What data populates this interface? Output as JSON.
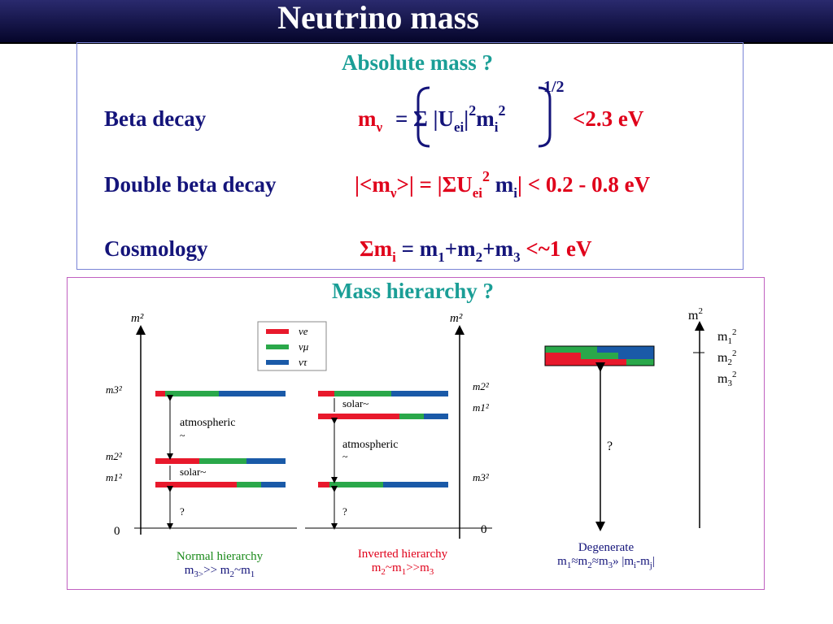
{
  "header": {
    "title": "Neutrino mass"
  },
  "absolute": {
    "heading": "Absolute mass ?",
    "beta": {
      "label": "Beta decay",
      "formula_m": "m",
      "formula_sub": "ν",
      "eq": "= Σ |U",
      "ei": "ei",
      "bar": "|",
      "two1": "2",
      "mi": "m",
      "i": "i",
      "two2": "2",
      "half": "1/2",
      "bound": "<2.3 eV"
    },
    "double": {
      "label": "Double beta decay",
      "pre": "|<m",
      "nu": "ν",
      "post": ">| = |ΣU",
      "ei": "ei",
      "two": "2",
      "mi": " m",
      "i": "i",
      "bound": "| < 0.2 - 0.8 eV"
    },
    "cosmo": {
      "label": "Cosmology",
      "sigma": "Σm",
      "i": "i",
      "eq": " = m",
      "s1": "1",
      "p1": "+m",
      "s2": "2",
      "p2": "+m",
      "s3": "3",
      "bound": " <~1 eV"
    }
  },
  "hierarchy": {
    "heading": "Mass hierarchy ?",
    "diagram": {
      "axis_label": "m²",
      "legend": [
        "νe",
        "νμ",
        "ντ"
      ],
      "colors": {
        "nue": "#e8192c",
        "numu": "#2aa84a",
        "nutau": "#1a5aa8"
      },
      "left_ticks": [
        "m3²",
        "m2²",
        "m1²",
        "0"
      ],
      "mid_ticks": [
        "m2²",
        "m1²",
        "m3²",
        "0"
      ],
      "normal_labels": [
        "atmospheric",
        "~",
        "solar~",
        "?"
      ],
      "inverted_labels": [
        "solar~",
        "atmospheric",
        "~",
        "?"
      ]
    },
    "normal": {
      "line1": "Normal hierarchy",
      "m3": "m",
      "s3": "3>",
      "gt": ">> m",
      "s2": "2",
      "tl": "~m",
      "s1": "1"
    },
    "inverted": {
      "line1": "Inverted hierarchy",
      "m2": "m",
      "s2": "2",
      "tl": "~m",
      "s1": "1",
      "gt": ">>m",
      "s3": "3"
    },
    "degenerate": {
      "line1": "Degenerate",
      "m": "m",
      "s1": "1",
      "a1": "≈m",
      "s2": "2",
      "a2": "≈m",
      "s3": "3",
      "rest": "» |m",
      "si": "i",
      "dash": "-m",
      "sj": "j",
      "end": "|",
      "question": "?"
    },
    "right_axis": {
      "label": "m",
      "sup": "2",
      "items": [
        {
          "m": "m",
          "sub": "1",
          "sup": "2"
        },
        {
          "m": "m",
          "sub": "2",
          "sup": "2"
        },
        {
          "m": "m",
          "sub": "3",
          "sup": "2"
        }
      ]
    }
  }
}
